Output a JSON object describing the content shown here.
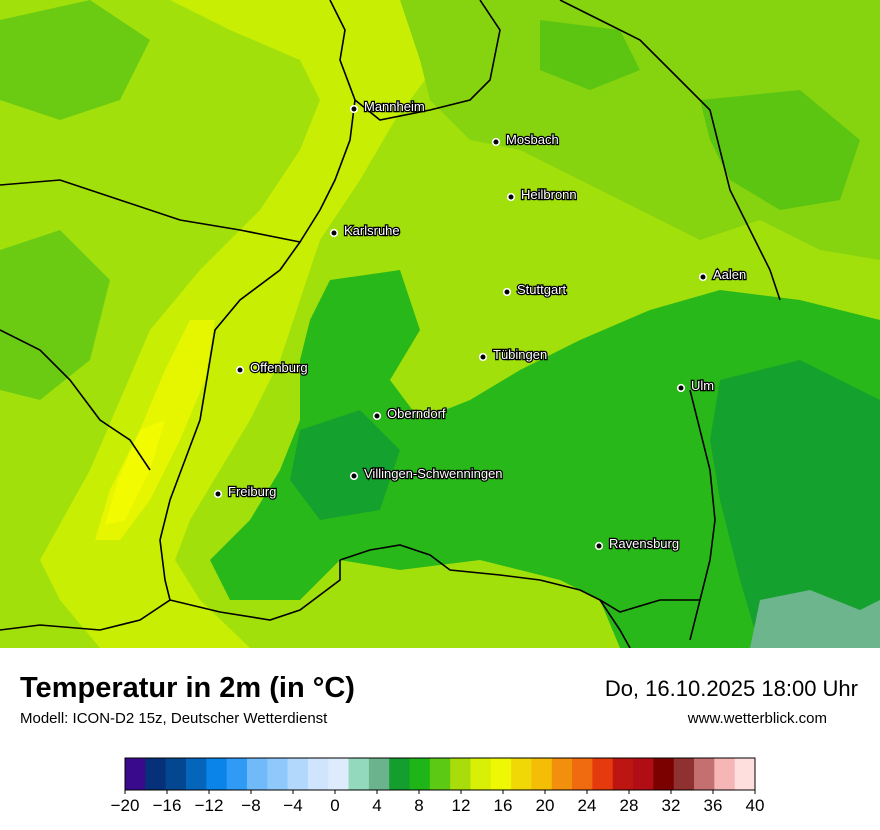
{
  "title": "Temperatur in 2m (in °C)",
  "model": "Modell: ICON-D2 15z, Deutscher Wetterdienst",
  "datetime": "Do, 16.10.2025 18:00 Uhr",
  "website": "www.wetterblick.com",
  "cities": [
    {
      "name": "Mannheim"
    },
    {
      "name": "Mosbach"
    },
    {
      "name": "Heilbronn"
    },
    {
      "name": "Karlsruhe"
    },
    {
      "name": "Aalen"
    },
    {
      "name": "Stuttgart"
    },
    {
      "name": "Tübingen"
    },
    {
      "name": "Offenburg"
    },
    {
      "name": "Ulm"
    },
    {
      "name": "Oberndorf"
    },
    {
      "name": "Villingen-Schwenningen"
    },
    {
      "name": "Freiburg"
    },
    {
      "name": "Ravensburg"
    }
  ],
  "legend": {
    "colors": [
      "#3a0a8c",
      "#07307a",
      "#044790",
      "#0565bb",
      "#0a84e8",
      "#2f9bf5",
      "#71baf9",
      "#8fc8fb",
      "#b2d9fc",
      "#cfe5fd",
      "#ddebfd",
      "#93d9bd",
      "#6ab38c",
      "#139e2e",
      "#1fb418",
      "#5cca14",
      "#a8dc0a",
      "#d7f005",
      "#eef704",
      "#f0d806",
      "#f4bd06",
      "#f28f0d",
      "#f06a0f",
      "#e43a0d",
      "#bc1512",
      "#b00e14",
      "#7b0000",
      "#8f3131",
      "#c47070",
      "#f6b6b6",
      "#ffdede"
    ],
    "tick_labels": [
      "−20",
      "−16",
      "−12",
      "−8",
      "−4",
      "0",
      "4",
      "8",
      "12",
      "16",
      "20",
      "24",
      "28",
      "32",
      "36",
      "40"
    ]
  }
}
